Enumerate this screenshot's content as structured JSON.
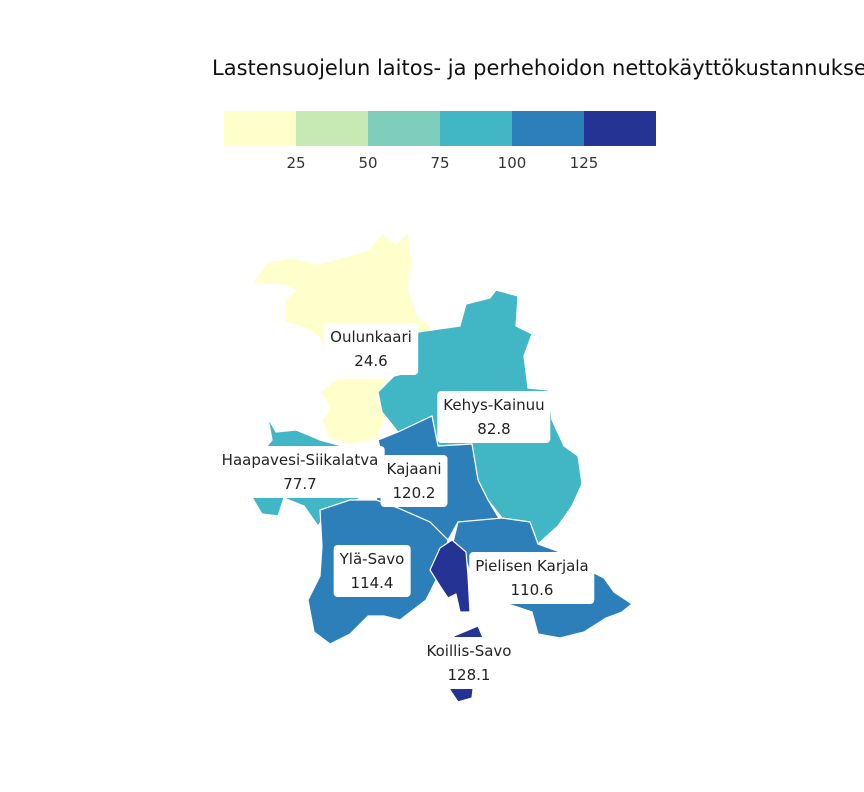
{
  "title": "Lastensuojelun laitos- ja perhehoidon nettokäyttökustannukset",
  "legend": {
    "colors": [
      "#ffffcc",
      "#c7e9b4",
      "#7fcdbb",
      "#41b6c4",
      "#2c7fb8",
      "#253494"
    ],
    "ticks": [
      "25",
      "50",
      "75",
      "100",
      "125"
    ]
  },
  "regions": [
    {
      "name": "Oulunkaari",
      "value": "24.6",
      "color": "#ffffcc"
    },
    {
      "name": "Kehys-Kainuu",
      "value": "82.8",
      "color": "#41b6c4"
    },
    {
      "name": "Haapavesi-Siikalatva",
      "value": "77.7",
      "color": "#41b6c4"
    },
    {
      "name": "Kajaani",
      "value": "120.2",
      "color": "#2c7fb8"
    },
    {
      "name": "Ylä-Savo",
      "value": "114.4",
      "color": "#2c7fb8"
    },
    {
      "name": "Pielisen Karjala",
      "value": "110.6",
      "color": "#2c7fb8"
    },
    {
      "name": "Koillis-Savo",
      "value": "128.1",
      "color": "#253494"
    }
  ]
}
